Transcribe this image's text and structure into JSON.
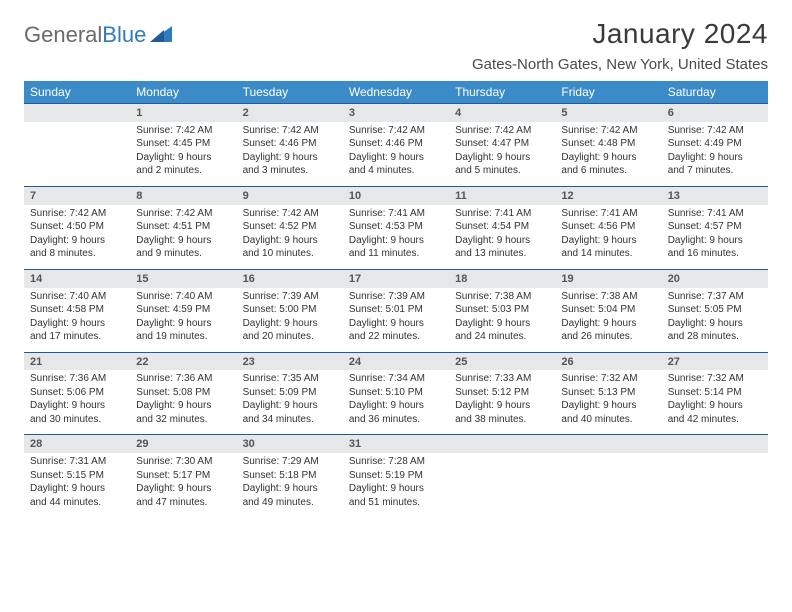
{
  "logo": {
    "text1": "General",
    "text2": "Blue"
  },
  "title": "January 2024",
  "location": "Gates-North Gates, New York, United States",
  "colors": {
    "header_bg": "#3b8bc9",
    "header_text": "#ffffff",
    "daynum_bg": "#e6e7e8",
    "daynum_border": "#1f5c94",
    "body_text": "#333333",
    "logo_blue": "#2f7bbf"
  },
  "weekdays": [
    "Sunday",
    "Monday",
    "Tuesday",
    "Wednesday",
    "Thursday",
    "Friday",
    "Saturday"
  ],
  "weeks": [
    [
      {
        "n": "",
        "sunrise": "",
        "sunset": "",
        "daylight": ""
      },
      {
        "n": "1",
        "sunrise": "Sunrise: 7:42 AM",
        "sunset": "Sunset: 4:45 PM",
        "daylight": "Daylight: 9 hours and 2 minutes."
      },
      {
        "n": "2",
        "sunrise": "Sunrise: 7:42 AM",
        "sunset": "Sunset: 4:46 PM",
        "daylight": "Daylight: 9 hours and 3 minutes."
      },
      {
        "n": "3",
        "sunrise": "Sunrise: 7:42 AM",
        "sunset": "Sunset: 4:46 PM",
        "daylight": "Daylight: 9 hours and 4 minutes."
      },
      {
        "n": "4",
        "sunrise": "Sunrise: 7:42 AM",
        "sunset": "Sunset: 4:47 PM",
        "daylight": "Daylight: 9 hours and 5 minutes."
      },
      {
        "n": "5",
        "sunrise": "Sunrise: 7:42 AM",
        "sunset": "Sunset: 4:48 PM",
        "daylight": "Daylight: 9 hours and 6 minutes."
      },
      {
        "n": "6",
        "sunrise": "Sunrise: 7:42 AM",
        "sunset": "Sunset: 4:49 PM",
        "daylight": "Daylight: 9 hours and 7 minutes."
      }
    ],
    [
      {
        "n": "7",
        "sunrise": "Sunrise: 7:42 AM",
        "sunset": "Sunset: 4:50 PM",
        "daylight": "Daylight: 9 hours and 8 minutes."
      },
      {
        "n": "8",
        "sunrise": "Sunrise: 7:42 AM",
        "sunset": "Sunset: 4:51 PM",
        "daylight": "Daylight: 9 hours and 9 minutes."
      },
      {
        "n": "9",
        "sunrise": "Sunrise: 7:42 AM",
        "sunset": "Sunset: 4:52 PM",
        "daylight": "Daylight: 9 hours and 10 minutes."
      },
      {
        "n": "10",
        "sunrise": "Sunrise: 7:41 AM",
        "sunset": "Sunset: 4:53 PM",
        "daylight": "Daylight: 9 hours and 11 minutes."
      },
      {
        "n": "11",
        "sunrise": "Sunrise: 7:41 AM",
        "sunset": "Sunset: 4:54 PM",
        "daylight": "Daylight: 9 hours and 13 minutes."
      },
      {
        "n": "12",
        "sunrise": "Sunrise: 7:41 AM",
        "sunset": "Sunset: 4:56 PM",
        "daylight": "Daylight: 9 hours and 14 minutes."
      },
      {
        "n": "13",
        "sunrise": "Sunrise: 7:41 AM",
        "sunset": "Sunset: 4:57 PM",
        "daylight": "Daylight: 9 hours and 16 minutes."
      }
    ],
    [
      {
        "n": "14",
        "sunrise": "Sunrise: 7:40 AM",
        "sunset": "Sunset: 4:58 PM",
        "daylight": "Daylight: 9 hours and 17 minutes."
      },
      {
        "n": "15",
        "sunrise": "Sunrise: 7:40 AM",
        "sunset": "Sunset: 4:59 PM",
        "daylight": "Daylight: 9 hours and 19 minutes."
      },
      {
        "n": "16",
        "sunrise": "Sunrise: 7:39 AM",
        "sunset": "Sunset: 5:00 PM",
        "daylight": "Daylight: 9 hours and 20 minutes."
      },
      {
        "n": "17",
        "sunrise": "Sunrise: 7:39 AM",
        "sunset": "Sunset: 5:01 PM",
        "daylight": "Daylight: 9 hours and 22 minutes."
      },
      {
        "n": "18",
        "sunrise": "Sunrise: 7:38 AM",
        "sunset": "Sunset: 5:03 PM",
        "daylight": "Daylight: 9 hours and 24 minutes."
      },
      {
        "n": "19",
        "sunrise": "Sunrise: 7:38 AM",
        "sunset": "Sunset: 5:04 PM",
        "daylight": "Daylight: 9 hours and 26 minutes."
      },
      {
        "n": "20",
        "sunrise": "Sunrise: 7:37 AM",
        "sunset": "Sunset: 5:05 PM",
        "daylight": "Daylight: 9 hours and 28 minutes."
      }
    ],
    [
      {
        "n": "21",
        "sunrise": "Sunrise: 7:36 AM",
        "sunset": "Sunset: 5:06 PM",
        "daylight": "Daylight: 9 hours and 30 minutes."
      },
      {
        "n": "22",
        "sunrise": "Sunrise: 7:36 AM",
        "sunset": "Sunset: 5:08 PM",
        "daylight": "Daylight: 9 hours and 32 minutes."
      },
      {
        "n": "23",
        "sunrise": "Sunrise: 7:35 AM",
        "sunset": "Sunset: 5:09 PM",
        "daylight": "Daylight: 9 hours and 34 minutes."
      },
      {
        "n": "24",
        "sunrise": "Sunrise: 7:34 AM",
        "sunset": "Sunset: 5:10 PM",
        "daylight": "Daylight: 9 hours and 36 minutes."
      },
      {
        "n": "25",
        "sunrise": "Sunrise: 7:33 AM",
        "sunset": "Sunset: 5:12 PM",
        "daylight": "Daylight: 9 hours and 38 minutes."
      },
      {
        "n": "26",
        "sunrise": "Sunrise: 7:32 AM",
        "sunset": "Sunset: 5:13 PM",
        "daylight": "Daylight: 9 hours and 40 minutes."
      },
      {
        "n": "27",
        "sunrise": "Sunrise: 7:32 AM",
        "sunset": "Sunset: 5:14 PM",
        "daylight": "Daylight: 9 hours and 42 minutes."
      }
    ],
    [
      {
        "n": "28",
        "sunrise": "Sunrise: 7:31 AM",
        "sunset": "Sunset: 5:15 PM",
        "daylight": "Daylight: 9 hours and 44 minutes."
      },
      {
        "n": "29",
        "sunrise": "Sunrise: 7:30 AM",
        "sunset": "Sunset: 5:17 PM",
        "daylight": "Daylight: 9 hours and 47 minutes."
      },
      {
        "n": "30",
        "sunrise": "Sunrise: 7:29 AM",
        "sunset": "Sunset: 5:18 PM",
        "daylight": "Daylight: 9 hours and 49 minutes."
      },
      {
        "n": "31",
        "sunrise": "Sunrise: 7:28 AM",
        "sunset": "Sunset: 5:19 PM",
        "daylight": "Daylight: 9 hours and 51 minutes."
      },
      {
        "n": "",
        "sunrise": "",
        "sunset": "",
        "daylight": ""
      },
      {
        "n": "",
        "sunrise": "",
        "sunset": "",
        "daylight": ""
      },
      {
        "n": "",
        "sunrise": "",
        "sunset": "",
        "daylight": ""
      }
    ]
  ]
}
